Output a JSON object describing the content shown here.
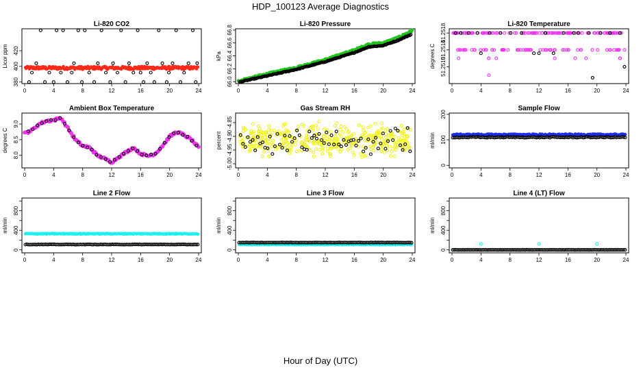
{
  "figure": {
    "title": "HDP_100123  Average Diagnostics",
    "xlabel": "Hour of Day (UTC)"
  },
  "colors": {
    "red": "#ff2a1a",
    "green": "#22c41e",
    "magenta": "#ee33ee",
    "yellow": "#f2f21c",
    "blue": "#1f2ee8",
    "cyan": "#1ef0f0",
    "black": "#000000"
  },
  "x_ticks": [
    "0",
    "4",
    "8",
    "12",
    "16",
    "20",
    "24"
  ],
  "chart_data": [
    {
      "id": "co2",
      "type": "scatter",
      "title": "Li-820 CO2",
      "ylabel": "Licor ppm",
      "xlim": [
        0,
        24
      ],
      "ylim": [
        378,
        448
      ],
      "yticks": [
        380,
        400,
        420
      ],
      "ytick_labels": [
        "380",
        "400",
        "420"
      ],
      "series": [
        {
          "name": "instrument",
          "color": "red",
          "style": "band",
          "y": 398,
          "spread": 2
        },
        {
          "name": "overlay",
          "color": "black",
          "style": "sparse",
          "points": [
            [
              0.6,
              380
            ],
            [
              1.0,
              392
            ],
            [
              1.6,
              404
            ],
            [
              2.2,
              446
            ],
            [
              2.8,
              380
            ],
            [
              3.4,
              392
            ],
            [
              4.0,
              380
            ],
            [
              4.4,
              446
            ],
            [
              5.0,
              392
            ],
            [
              5.3,
              446
            ],
            [
              5.9,
              380
            ],
            [
              6.5,
              392
            ],
            [
              6.8,
              404
            ],
            [
              7.4,
              446
            ],
            [
              7.9,
              380
            ],
            [
              8.3,
              446
            ],
            [
              8.9,
              392
            ],
            [
              9.6,
              380
            ],
            [
              10.1,
              404
            ],
            [
              10.6,
              446
            ],
            [
              11.2,
              392
            ],
            [
              11.8,
              380
            ],
            [
              12.2,
              404
            ],
            [
              12.8,
              392
            ],
            [
              13.3,
              446
            ],
            [
              13.9,
              380
            ],
            [
              14.4,
              404
            ],
            [
              15.0,
              392
            ],
            [
              15.6,
              446
            ],
            [
              16.0,
              392
            ],
            [
              16.4,
              380
            ],
            [
              16.9,
              404
            ],
            [
              17.4,
              392
            ],
            [
              17.9,
              380
            ],
            [
              18.5,
              446
            ],
            [
              19.0,
              404
            ],
            [
              19.6,
              380
            ],
            [
              19.9,
              392
            ],
            [
              20.4,
              404
            ],
            [
              20.9,
              446
            ],
            [
              21.5,
              380
            ],
            [
              22.0,
              392
            ],
            [
              22.6,
              404
            ],
            [
              23.2,
              446
            ],
            [
              23.6,
              380
            ],
            [
              23.8,
              404
            ]
          ]
        }
      ]
    },
    {
      "id": "pressure",
      "type": "scatter",
      "title": "Li-820 Pressure",
      "ylabel": "kPa",
      "xlim": [
        0,
        24
      ],
      "ylim": [
        65.97,
        66.82
      ],
      "yticks": [
        66.0,
        66.2,
        66.4,
        66.6,
        66.8
      ],
      "ytick_labels": [
        "66.0",
        "66.2",
        "66.4",
        "66.6",
        "66.8"
      ],
      "series": [
        {
          "name": "instrument",
          "color": "green",
          "style": "curve",
          "curve": [
            [
              0,
              66.01
            ],
            [
              4,
              66.12
            ],
            [
              8,
              66.22
            ],
            [
              12,
              66.34
            ],
            [
              16,
              66.49
            ],
            [
              18,
              66.58
            ],
            [
              20,
              66.6
            ],
            [
              22,
              66.68
            ],
            [
              24,
              66.79
            ]
          ],
          "spread": 0.015
        },
        {
          "name": "overlay",
          "color": "black",
          "style": "curve_dense",
          "curve": [
            [
              0,
              65.99
            ],
            [
              4,
              66.09
            ],
            [
              8,
              66.19
            ],
            [
              12,
              66.31
            ],
            [
              16,
              66.45
            ],
            [
              18,
              66.54
            ],
            [
              20,
              66.56
            ],
            [
              22,
              66.64
            ],
            [
              24,
              66.74
            ]
          ],
          "spread": 0.006
        }
      ]
    },
    {
      "id": "licor_temp",
      "type": "scatter",
      "title": "Li-820 Temperature",
      "ylabel": "degrees C",
      "xlim": [
        0,
        24
      ],
      "ylim": [
        51.2506,
        51.2519
      ],
      "yticks": [
        51.251,
        51.2514,
        51.2518
      ],
      "ytick_labels": [
        "51.2510",
        "51.2514",
        "51.2518"
      ],
      "series": [
        {
          "name": "instrument",
          "color": "magenta",
          "style": "levels",
          "levels": [
            51.2518,
            51.2514,
            51.2512,
            51.2508
          ]
        },
        {
          "name": "overlay",
          "color": "black",
          "style": "sparse",
          "points": [
            [
              0.5,
              51.2518
            ],
            [
              1.2,
              51.2518
            ],
            [
              2.3,
              51.2518
            ],
            [
              3.5,
              51.2518
            ],
            [
              4.0,
              51.25132
            ],
            [
              5.2,
              51.2518
            ],
            [
              6.7,
              51.2518
            ],
            [
              8.1,
              51.2518
            ],
            [
              9.6,
              51.2518
            ],
            [
              11.3,
              51.25132
            ],
            [
              12.0,
              51.25132
            ],
            [
              12.9,
              51.2518
            ],
            [
              14.0,
              51.25132
            ],
            [
              15.4,
              51.2518
            ],
            [
              16.8,
              51.2518
            ],
            [
              17.4,
              51.2518
            ],
            [
              18.9,
              51.2518
            ],
            [
              19.4,
              51.25074
            ],
            [
              20.5,
              51.2518
            ],
            [
              21.8,
              51.2518
            ],
            [
              23.2,
              51.2518
            ],
            [
              23.8,
              51.251
            ]
          ]
        }
      ]
    },
    {
      "id": "box_temp",
      "type": "scatter",
      "title": "Ambient Box Temperature",
      "ylabel": "degrees C",
      "xlim": [
        0,
        24
      ],
      "ylim": [
        7.6,
        9.35
      ],
      "yticks": [
        8.0,
        8.5,
        9.0
      ],
      "ytick_labels": [
        "8.0",
        "8.5",
        "9.0"
      ],
      "series": [
        {
          "name": "instrument",
          "color": "magenta",
          "style": "curve_bigdots",
          "curve": [
            [
              0,
              8.7
            ],
            [
              1,
              8.8
            ],
            [
              2,
              9.0
            ],
            [
              3,
              9.1
            ],
            [
              4,
              9.12
            ],
            [
              5,
              9.2
            ],
            [
              6,
              8.85
            ],
            [
              7,
              8.5
            ],
            [
              8,
              8.3
            ],
            [
              9,
              8.25
            ],
            [
              10,
              8.0
            ],
            [
              11,
              7.9
            ],
            [
              12,
              7.78
            ],
            [
              13,
              7.95
            ],
            [
              14,
              8.1
            ],
            [
              15,
              8.25
            ],
            [
              16,
              8.05
            ],
            [
              17,
              7.98
            ],
            [
              18,
              8.05
            ],
            [
              19,
              8.3
            ],
            [
              20,
              8.6
            ],
            [
              21,
              8.75
            ],
            [
              22,
              8.65
            ],
            [
              23,
              8.5
            ],
            [
              24,
              8.25
            ]
          ],
          "spread": 0.035
        },
        {
          "name": "overlay",
          "color": "black",
          "style": "curve_sparse",
          "curve": [
            [
              0,
              8.7
            ],
            [
              1,
              8.8
            ],
            [
              2,
              9.0
            ],
            [
              3,
              9.1
            ],
            [
              4,
              9.12
            ],
            [
              5,
              9.2
            ],
            [
              6,
              8.85
            ],
            [
              7,
              8.5
            ],
            [
              8,
              8.3
            ],
            [
              9,
              8.25
            ],
            [
              10,
              8.0
            ],
            [
              11,
              7.9
            ],
            [
              12,
              7.78
            ],
            [
              13,
              7.95
            ],
            [
              14,
              8.1
            ],
            [
              15,
              8.25
            ],
            [
              16,
              8.05
            ],
            [
              17,
              7.98
            ],
            [
              18,
              8.05
            ],
            [
              19,
              8.3
            ],
            [
              20,
              8.6
            ],
            [
              21,
              8.75
            ],
            [
              22,
              8.65
            ],
            [
              23,
              8.5
            ],
            [
              24,
              8.25
            ]
          ],
          "spread": 0.02
        }
      ]
    },
    {
      "id": "rh",
      "type": "scatter",
      "title": "Gas Stream RH",
      "ylabel": "percent",
      "xlim": [
        0,
        24
      ],
      "ylim": [
        -5.015,
        -4.815
      ],
      "yticks": [
        -5.0,
        -4.95,
        -4.9,
        -4.85
      ],
      "ytick_labels": [
        "-5.00",
        "-4.95",
        "-4.90",
        "-4.85"
      ],
      "series": [
        {
          "name": "instrument",
          "color": "yellow",
          "style": "noise",
          "y": -4.915,
          "spread": 0.05
        },
        {
          "name": "overlay",
          "color": "black",
          "style": "noise_sparse",
          "y": -4.915,
          "spread": 0.045
        }
      ]
    },
    {
      "id": "sample_flow",
      "type": "scatter",
      "title": "Sample Flow",
      "ylabel": "ml/min",
      "xlim": [
        0,
        24
      ],
      "ylim": [
        -10,
        205
      ],
      "yticks": [
        0,
        100,
        200
      ],
      "ytick_labels": [
        "0",
        "100",
        "200"
      ],
      "series": [
        {
          "name": "instrument",
          "color": "blue",
          "style": "band",
          "y": 120,
          "spread": 3
        },
        {
          "name": "overlay",
          "color": "black",
          "style": "band_dense",
          "y": 110,
          "spread": 2
        }
      ]
    },
    {
      "id": "line2",
      "type": "scatter",
      "title": "Line 2 Flow",
      "ylabel": "ml/min",
      "xlim": [
        0,
        24
      ],
      "ylim": [
        -60,
        1060
      ],
      "yticks": [
        0,
        200,
        400,
        600,
        800,
        1000
      ],
      "ytick_labels": [
        "0",
        "400",
        "800"
      ],
      "series": [
        {
          "name": "instrument",
          "color": "cyan",
          "style": "band",
          "y": 330,
          "spread": 8
        },
        {
          "name": "overlay",
          "color": "black",
          "style": "band_dense",
          "y": 110,
          "spread": 3
        }
      ]
    },
    {
      "id": "line3",
      "type": "scatter",
      "title": "Line 3 Flow",
      "ylabel": "ml/min",
      "xlim": [
        0,
        24
      ],
      "ylim": [
        -60,
        1060
      ],
      "yticks": [
        0,
        200,
        400,
        600,
        800,
        1000
      ],
      "ytick_labels": [
        "0",
        "400",
        "800"
      ],
      "series": [
        {
          "name": "instrument",
          "color": "cyan",
          "style": "band",
          "y": 110,
          "spread": 5
        },
        {
          "name": "overlay",
          "color": "black",
          "style": "band_dense",
          "y": 150,
          "spread": 3
        }
      ]
    },
    {
      "id": "line4",
      "type": "scatter",
      "title": "Line 4 (LT) Flow",
      "ylabel": "ml/min",
      "xlim": [
        0,
        24
      ],
      "ylim": [
        -60,
        1060
      ],
      "yticks": [
        0,
        200,
        400,
        600,
        800,
        1000
      ],
      "ytick_labels": [
        "0",
        "400",
        "800"
      ],
      "series": [
        {
          "name": "instrument",
          "color": "cyan",
          "style": "sparse",
          "points": [
            [
              0.1,
              0
            ],
            [
              4.0,
              120
            ],
            [
              12.0,
              120
            ],
            [
              20.0,
              120
            ]
          ]
        },
        {
          "name": "overlay",
          "color": "black",
          "style": "band_dense",
          "y": 0,
          "spread": 1
        }
      ]
    }
  ]
}
